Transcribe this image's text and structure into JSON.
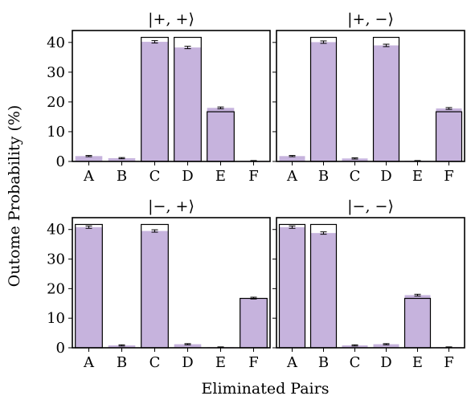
{
  "figure": {
    "ylabel": "Outome Probability (%)",
    "xlabel": "Eliminated Pairs"
  },
  "colors": {
    "bar_fill": "#c6b3dd",
    "outline": "#000000",
    "errorbar": "#000000"
  },
  "chart_data": [
    {
      "type": "bar",
      "title": "|+, +⟩",
      "categories": [
        "A",
        "B",
        "C",
        "D",
        "E",
        "F"
      ],
      "ylim": [
        0,
        44
      ],
      "yticks": [
        0,
        10,
        20,
        30,
        40
      ],
      "values": [
        1.8,
        1.1,
        40.2,
        38.3,
        18.0,
        0.2
      ],
      "errors": [
        0.2,
        0.2,
        0.4,
        0.4,
        0.3,
        0.1
      ],
      "ideal": [
        0,
        0,
        41.7,
        41.7,
        16.7,
        0
      ]
    },
    {
      "type": "bar",
      "title": "|+, −⟩",
      "categories": [
        "A",
        "B",
        "C",
        "D",
        "E",
        "F"
      ],
      "ylim": [
        0,
        44
      ],
      "yticks": [
        0,
        10,
        20,
        30,
        40
      ],
      "values": [
        1.8,
        40.1,
        1.0,
        39.0,
        0.2,
        17.8
      ],
      "errors": [
        0.2,
        0.4,
        0.2,
        0.4,
        0.1,
        0.3
      ],
      "ideal": [
        0,
        41.7,
        0,
        41.7,
        0,
        16.7
      ]
    },
    {
      "type": "bar",
      "title": "|−, +⟩",
      "categories": [
        "A",
        "B",
        "C",
        "D",
        "E",
        "F"
      ],
      "ylim": [
        0,
        44
      ],
      "yticks": [
        0,
        10,
        20,
        30,
        40
      ],
      "values": [
        40.8,
        0.8,
        39.5,
        1.2,
        0.2,
        16.8
      ],
      "errors": [
        0.4,
        0.2,
        0.4,
        0.2,
        0.1,
        0.3
      ],
      "ideal": [
        41.7,
        0,
        41.7,
        0,
        0,
        16.7
      ]
    },
    {
      "type": "bar",
      "title": "|−, −⟩",
      "categories": [
        "A",
        "B",
        "C",
        "D",
        "E",
        "F"
      ],
      "ylim": [
        0,
        44
      ],
      "yticks": [
        0,
        10,
        20,
        30,
        40
      ],
      "values": [
        40.8,
        38.8,
        0.8,
        1.2,
        17.8,
        0.2
      ],
      "errors": [
        0.4,
        0.4,
        0.2,
        0.2,
        0.3,
        0.1
      ],
      "ideal": [
        41.7,
        41.7,
        0,
        0,
        16.7,
        0
      ]
    }
  ]
}
